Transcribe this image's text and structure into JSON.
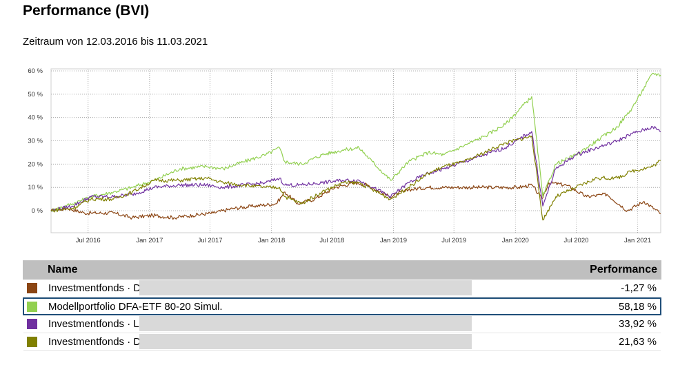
{
  "header": {
    "title": "Performance (BVI)",
    "subtitle": "Zeitraum von 12.03.2016 bis 11.03.2021"
  },
  "chart_data": {
    "type": "line",
    "x_range": [
      "2016-03-12",
      "2021-03-11"
    ],
    "ylim": [
      -5,
      60
    ],
    "y_ticks": [
      {
        "value": 60,
        "label": "60 %"
      },
      {
        "value": 50,
        "label": "50 %"
      },
      {
        "value": 40,
        "label": "40 %"
      },
      {
        "value": 30,
        "label": "30 %"
      },
      {
        "value": 20,
        "label": "20 %"
      },
      {
        "value": 10,
        "label": "10 %"
      },
      {
        "value": 0,
        "label": "0 %"
      }
    ],
    "x_ticks": [
      {
        "date": "2016-07-01",
        "label": "Jul 2016"
      },
      {
        "date": "2017-01-01",
        "label": "Jan 2017"
      },
      {
        "date": "2017-07-01",
        "label": "Jul 2017"
      },
      {
        "date": "2018-01-01",
        "label": "Jan 2018"
      },
      {
        "date": "2018-07-01",
        "label": "Jul 2018"
      },
      {
        "date": "2019-01-01",
        "label": "Jan 2019"
      },
      {
        "date": "2019-07-01",
        "label": "Jul 2019"
      },
      {
        "date": "2020-01-01",
        "label": "Jan 2020"
      },
      {
        "date": "2020-07-01",
        "label": "Jul 2020"
      },
      {
        "date": "2021-01-01",
        "label": "Jan 2021"
      }
    ],
    "grid": true,
    "series": [
      {
        "color": "#8b4513",
        "points": [
          [
            "2016-03-12",
            0
          ],
          [
            "2016-05-01",
            1
          ],
          [
            "2016-06-20",
            -1
          ],
          [
            "2016-07-10",
            -1
          ],
          [
            "2016-09-15",
            -1
          ],
          [
            "2016-11-10",
            -3
          ],
          [
            "2017-01-10",
            -2
          ],
          [
            "2017-03-15",
            -3
          ],
          [
            "2017-05-10",
            -2
          ],
          [
            "2017-07-10",
            -1
          ],
          [
            "2017-09-10",
            1
          ],
          [
            "2017-11-10",
            2
          ],
          [
            "2018-01-15",
            3
          ],
          [
            "2018-02-10",
            8
          ],
          [
            "2018-03-20",
            3
          ],
          [
            "2018-05-10",
            5
          ],
          [
            "2018-07-10",
            10
          ],
          [
            "2018-09-10",
            12
          ],
          [
            "2018-10-15",
            11
          ],
          [
            "2018-12-20",
            6
          ],
          [
            "2019-02-15",
            9
          ],
          [
            "2019-04-15",
            10
          ],
          [
            "2019-07-01",
            10
          ],
          [
            "2019-09-01",
            10
          ],
          [
            "2019-11-01",
            10
          ],
          [
            "2020-01-10",
            10
          ],
          [
            "2020-02-20",
            11
          ],
          [
            "2020-03-20",
            5
          ],
          [
            "2020-04-10",
            12
          ],
          [
            "2020-06-01",
            11
          ],
          [
            "2020-08-01",
            6
          ],
          [
            "2020-10-01",
            7
          ],
          [
            "2020-12-01",
            0
          ],
          [
            "2021-01-20",
            4
          ],
          [
            "2021-03-11",
            -1.27
          ]
        ]
      },
      {
        "color": "#92d050",
        "points": [
          [
            "2016-03-12",
            0
          ],
          [
            "2016-05-15",
            3
          ],
          [
            "2016-07-10",
            6
          ],
          [
            "2016-09-15",
            8
          ],
          [
            "2016-11-10",
            10
          ],
          [
            "2017-01-15",
            13
          ],
          [
            "2017-04-01",
            18
          ],
          [
            "2017-06-20",
            19
          ],
          [
            "2017-08-10",
            18
          ],
          [
            "2017-10-10",
            21
          ],
          [
            "2017-12-15",
            24
          ],
          [
            "2018-01-25",
            27
          ],
          [
            "2018-02-10",
            21
          ],
          [
            "2018-04-01",
            20
          ],
          [
            "2018-06-01",
            24
          ],
          [
            "2018-08-01",
            26
          ],
          [
            "2018-09-20",
            27
          ],
          [
            "2018-10-30",
            21
          ],
          [
            "2018-12-24",
            13
          ],
          [
            "2019-02-15",
            21
          ],
          [
            "2019-04-15",
            25
          ],
          [
            "2019-06-01",
            24
          ],
          [
            "2019-08-01",
            28
          ],
          [
            "2019-10-01",
            32
          ],
          [
            "2019-12-01",
            37
          ],
          [
            "2020-02-19",
            49
          ],
          [
            "2020-03-23",
            6
          ],
          [
            "2020-05-01",
            20
          ],
          [
            "2020-07-01",
            24
          ],
          [
            "2020-09-01",
            30
          ],
          [
            "2020-11-01",
            36
          ],
          [
            "2020-12-15",
            44
          ],
          [
            "2021-02-15",
            59
          ],
          [
            "2021-03-11",
            58.18
          ]
        ]
      },
      {
        "color": "#7030a0",
        "points": [
          [
            "2016-03-12",
            0
          ],
          [
            "2016-05-15",
            2
          ],
          [
            "2016-07-10",
            6
          ],
          [
            "2016-09-15",
            6
          ],
          [
            "2016-11-10",
            7
          ],
          [
            "2017-01-15",
            10
          ],
          [
            "2017-04-01",
            11
          ],
          [
            "2017-06-20",
            11
          ],
          [
            "2017-08-10",
            10
          ],
          [
            "2017-10-10",
            11
          ],
          [
            "2017-12-15",
            12
          ],
          [
            "2018-01-25",
            14
          ],
          [
            "2018-02-10",
            11
          ],
          [
            "2018-04-01",
            11
          ],
          [
            "2018-06-01",
            12
          ],
          [
            "2018-08-01",
            13
          ],
          [
            "2018-09-20",
            13
          ],
          [
            "2018-10-30",
            10
          ],
          [
            "2018-12-24",
            6
          ],
          [
            "2019-02-15",
            12
          ],
          [
            "2019-04-15",
            16
          ],
          [
            "2019-06-01",
            18
          ],
          [
            "2019-08-01",
            21
          ],
          [
            "2019-10-01",
            24
          ],
          [
            "2019-12-01",
            27
          ],
          [
            "2020-02-19",
            34
          ],
          [
            "2020-03-23",
            2
          ],
          [
            "2020-05-01",
            18
          ],
          [
            "2020-07-01",
            24
          ],
          [
            "2020-09-01",
            27
          ],
          [
            "2020-11-01",
            30
          ],
          [
            "2020-12-15",
            33
          ],
          [
            "2021-02-15",
            36
          ],
          [
            "2021-03-11",
            33.92
          ]
        ]
      },
      {
        "color": "#808000",
        "points": [
          [
            "2016-03-12",
            0
          ],
          [
            "2016-05-15",
            1
          ],
          [
            "2016-07-10",
            5
          ],
          [
            "2016-09-15",
            5
          ],
          [
            "2016-11-10",
            8
          ],
          [
            "2017-01-15",
            13
          ],
          [
            "2017-04-01",
            13
          ],
          [
            "2017-06-20",
            14
          ],
          [
            "2017-08-10",
            12
          ],
          [
            "2017-10-10",
            11
          ],
          [
            "2017-12-15",
            10
          ],
          [
            "2018-01-25",
            10
          ],
          [
            "2018-02-10",
            6
          ],
          [
            "2018-04-01",
            3
          ],
          [
            "2018-06-01",
            8
          ],
          [
            "2018-08-01",
            12
          ],
          [
            "2018-09-20",
            12
          ],
          [
            "2018-10-30",
            9
          ],
          [
            "2018-12-24",
            5
          ],
          [
            "2019-02-15",
            10
          ],
          [
            "2019-04-15",
            16
          ],
          [
            "2019-06-01",
            19
          ],
          [
            "2019-08-01",
            21
          ],
          [
            "2019-10-01",
            25
          ],
          [
            "2019-12-01",
            29
          ],
          [
            "2020-02-19",
            32
          ],
          [
            "2020-03-23",
            -4
          ],
          [
            "2020-05-01",
            6
          ],
          [
            "2020-07-01",
            10
          ],
          [
            "2020-09-01",
            14
          ],
          [
            "2020-11-01",
            14
          ],
          [
            "2020-12-15",
            17
          ],
          [
            "2021-02-15",
            19
          ],
          [
            "2021-03-11",
            21.63
          ]
        ]
      }
    ]
  },
  "table": {
    "header_name": "Name",
    "header_perf": "Performance",
    "rows": [
      {
        "name": "Investmentfonds · D",
        "perf": "-1,27 %",
        "color": "#8b4513"
      },
      {
        "name": "Modellportfolio DFA-ETF 80-20 Simul.",
        "perf": "58,18 %",
        "color": "#92d050"
      },
      {
        "name": "Investmentfonds · L",
        "perf": "33,92 %",
        "color": "#7030a0"
      },
      {
        "name": "Investmentfonds · D",
        "perf": "21,63 %",
        "color": "#808000"
      }
    ]
  }
}
